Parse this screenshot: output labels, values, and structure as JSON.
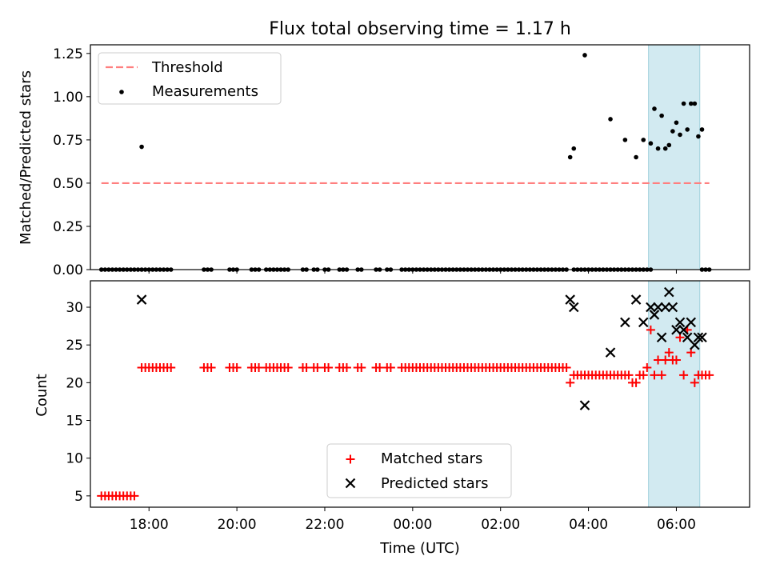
{
  "chart_data": {
    "title": "Flux total observing time = 1.17 h",
    "type": "scatter",
    "shaded_band": {
      "x_start": "05:22",
      "x_end": "06:32",
      "color": "#add8e6"
    },
    "x_axis": {
      "label": "Time (UTC)",
      "ticks": [
        "18:00",
        "20:00",
        "22:00",
        "00:00",
        "02:00",
        "04:00",
        "06:00"
      ],
      "range": [
        "16:40",
        "07:40"
      ]
    },
    "top_panel": {
      "ylabel": "Matched/Predicted stars",
      "ylim": [
        0,
        1.3
      ],
      "yticks": [
        "0.00",
        "0.25",
        "0.50",
        "0.75",
        "1.00",
        "1.25"
      ],
      "legend": {
        "position": "upper left",
        "items": [
          "Threshold",
          "Measurements"
        ]
      },
      "threshold": {
        "name": "Threshold",
        "value": 0.5,
        "x_start": "16:55",
        "x_end": "06:45",
        "color": "#ff7f7f",
        "style": "dashed"
      },
      "measurements": {
        "name": "Measurements",
        "color": "#000000",
        "x": [
          "16:55",
          "17:00",
          "17:05",
          "17:10",
          "17:15",
          "17:20",
          "17:25",
          "17:30",
          "17:35",
          "17:40",
          "17:45",
          "17:50",
          "17:55",
          "18:00",
          "18:05",
          "18:10",
          "18:15",
          "18:20",
          "18:25",
          "18:30",
          "19:15",
          "19:20",
          "19:25",
          "19:50",
          "19:55",
          "20:00",
          "20:20",
          "20:25",
          "20:30",
          "20:40",
          "20:45",
          "20:50",
          "20:55",
          "21:00",
          "21:05",
          "21:10",
          "21:30",
          "21:35",
          "21:45",
          "21:50",
          "22:00",
          "22:05",
          "22:20",
          "22:25",
          "22:30",
          "22:45",
          "22:50",
          "23:10",
          "23:15",
          "23:25",
          "23:30",
          "23:45",
          "23:50",
          "23:55",
          "00:00",
          "00:05",
          "00:10",
          "00:15",
          "00:20",
          "00:25",
          "00:30",
          "00:35",
          "00:40",
          "00:45",
          "00:50",
          "00:55",
          "01:00",
          "01:05",
          "01:10",
          "01:15",
          "01:20",
          "01:25",
          "01:30",
          "01:35",
          "01:40",
          "01:45",
          "01:50",
          "01:55",
          "02:00",
          "02:05",
          "02:10",
          "02:15",
          "02:20",
          "02:25",
          "02:30",
          "02:35",
          "02:40",
          "02:45",
          "02:50",
          "02:55",
          "03:00",
          "03:05",
          "03:10",
          "03:15",
          "03:20",
          "03:25",
          "03:30",
          "03:40",
          "03:45",
          "03:50",
          "03:55",
          "04:00",
          "04:05",
          "04:10",
          "04:15",
          "04:20",
          "04:25",
          "04:30",
          "04:35",
          "04:40",
          "04:45",
          "04:50",
          "04:55",
          "05:00",
          "05:05",
          "05:10",
          "05:15",
          "05:20",
          "05:25",
          "17:50",
          "03:35",
          "03:40",
          "03:55",
          "04:30",
          "04:50",
          "05:05",
          "05:15",
          "05:25",
          "05:30",
          "05:35",
          "05:40",
          "05:45",
          "05:50",
          "05:55",
          "06:00",
          "06:05",
          "06:10",
          "06:15",
          "06:20",
          "06:25",
          "06:30",
          "06:35",
          "06:35",
          "06:40",
          "06:45"
        ],
        "y": [
          0,
          0,
          0,
          0,
          0,
          0,
          0,
          0,
          0,
          0,
          0,
          0,
          0,
          0,
          0,
          0,
          0,
          0,
          0,
          0,
          0,
          0,
          0,
          0,
          0,
          0,
          0,
          0,
          0,
          0,
          0,
          0,
          0,
          0,
          0,
          0,
          0,
          0,
          0,
          0,
          0,
          0,
          0,
          0,
          0,
          0,
          0,
          0,
          0,
          0,
          0,
          0,
          0,
          0,
          0,
          0,
          0,
          0,
          0,
          0,
          0,
          0,
          0,
          0,
          0,
          0,
          0,
          0,
          0,
          0,
          0,
          0,
          0,
          0,
          0,
          0,
          0,
          0,
          0,
          0,
          0,
          0,
          0,
          0,
          0,
          0,
          0,
          0,
          0,
          0,
          0,
          0,
          0,
          0,
          0,
          0,
          0,
          0,
          0,
          0,
          0,
          0,
          0,
          0,
          0,
          0,
          0,
          0,
          0,
          0,
          0,
          0,
          0,
          0,
          0,
          0,
          0,
          0,
          0,
          0.71,
          0.65,
          0.7,
          1.24,
          0.87,
          0.75,
          0.65,
          0.75,
          0.73,
          0.93,
          0.7,
          0.89,
          0.7,
          0.72,
          0.8,
          0.85,
          0.78,
          0.96,
          0.81,
          0.96,
          0.96,
          0.77,
          0.81,
          0,
          0,
          0
        ]
      }
    },
    "bottom_panel": {
      "ylabel": "Count",
      "ylim": [
        3.5,
        33.5
      ],
      "yticks": [
        "5",
        "10",
        "15",
        "20",
        "25",
        "30"
      ],
      "legend": {
        "position": "lower center",
        "items": [
          "Matched stars",
          "Predicted stars"
        ]
      },
      "series": [
        {
          "name": "Matched stars",
          "marker": "+",
          "color": "#ff0000",
          "x": [
            "16:55",
            "17:00",
            "17:05",
            "17:10",
            "17:15",
            "17:20",
            "17:25",
            "17:30",
            "17:35",
            "17:40",
            "17:50",
            "17:55",
            "18:00",
            "18:05",
            "18:10",
            "18:15",
            "18:20",
            "18:25",
            "18:30",
            "19:15",
            "19:20",
            "19:25",
            "19:50",
            "19:55",
            "20:00",
            "20:20",
            "20:25",
            "20:30",
            "20:40",
            "20:45",
            "20:50",
            "20:55",
            "21:00",
            "21:05",
            "21:10",
            "21:30",
            "21:35",
            "21:45",
            "21:50",
            "22:00",
            "22:05",
            "22:20",
            "22:25",
            "22:30",
            "22:45",
            "22:50",
            "23:10",
            "23:15",
            "23:25",
            "23:30",
            "23:45",
            "23:50",
            "23:55",
            "00:00",
            "00:05",
            "00:10",
            "00:15",
            "00:20",
            "00:25",
            "00:30",
            "00:35",
            "00:40",
            "00:45",
            "00:50",
            "00:55",
            "01:00",
            "01:05",
            "01:10",
            "01:15",
            "01:20",
            "01:25",
            "01:30",
            "01:35",
            "01:40",
            "01:45",
            "01:50",
            "01:55",
            "02:00",
            "02:05",
            "02:10",
            "02:15",
            "02:20",
            "02:25",
            "02:30",
            "02:35",
            "02:40",
            "02:45",
            "02:50",
            "02:55",
            "03:00",
            "03:05",
            "03:10",
            "03:15",
            "03:20",
            "03:25",
            "03:30",
            "03:35",
            "03:40",
            "03:45",
            "03:50",
            "03:55",
            "04:00",
            "04:05",
            "04:10",
            "04:15",
            "04:20",
            "04:25",
            "04:30",
            "04:35",
            "04:40",
            "04:45",
            "04:50",
            "04:55",
            "05:00",
            "05:05",
            "05:10",
            "05:15",
            "05:20",
            "05:25",
            "05:30",
            "05:35",
            "05:40",
            "05:45",
            "05:50",
            "05:55",
            "06:00",
            "06:05",
            "06:10",
            "06:15",
            "06:20",
            "06:25",
            "06:30",
            "06:35",
            "06:40",
            "06:45"
          ],
          "y": [
            5,
            5,
            5,
            5,
            5,
            5,
            5,
            5,
            5,
            5,
            22,
            22,
            22,
            22,
            22,
            22,
            22,
            22,
            22,
            22,
            22,
            22,
            22,
            22,
            22,
            22,
            22,
            22,
            22,
            22,
            22,
            22,
            22,
            22,
            22,
            22,
            22,
            22,
            22,
            22,
            22,
            22,
            22,
            22,
            22,
            22,
            22,
            22,
            22,
            22,
            22,
            22,
            22,
            22,
            22,
            22,
            22,
            22,
            22,
            22,
            22,
            22,
            22,
            22,
            22,
            22,
            22,
            22,
            22,
            22,
            22,
            22,
            22,
            22,
            22,
            22,
            22,
            22,
            22,
            22,
            22,
            22,
            22,
            22,
            22,
            22,
            22,
            22,
            22,
            22,
            22,
            22,
            22,
            22,
            22,
            22,
            20,
            21,
            21,
            21,
            21,
            21,
            21,
            21,
            21,
            21,
            21,
            21,
            21,
            21,
            21,
            21,
            21,
            20,
            20,
            21,
            21,
            22,
            27,
            21,
            23,
            21,
            23,
            24,
            23,
            23,
            26,
            21,
            27,
            24,
            20,
            21,
            21,
            21,
            21
          ]
        },
        {
          "name": "Predicted stars",
          "marker": "x",
          "color": "#000000",
          "x": [
            "17:50",
            "03:35",
            "03:40",
            "03:55",
            "04:30",
            "04:50",
            "05:05",
            "05:15",
            "05:25",
            "05:30",
            "05:35",
            "05:40",
            "05:45",
            "05:50",
            "05:55",
            "06:00",
            "06:05",
            "06:10",
            "06:15",
            "06:20",
            "06:25",
            "06:30",
            "06:35"
          ],
          "y": [
            31,
            31,
            30,
            17,
            24,
            28,
            31,
            28,
            30,
            29,
            30,
            26,
            30,
            32,
            30,
            27,
            28,
            27,
            26,
            28,
            25,
            26,
            26
          ]
        }
      ]
    }
  }
}
